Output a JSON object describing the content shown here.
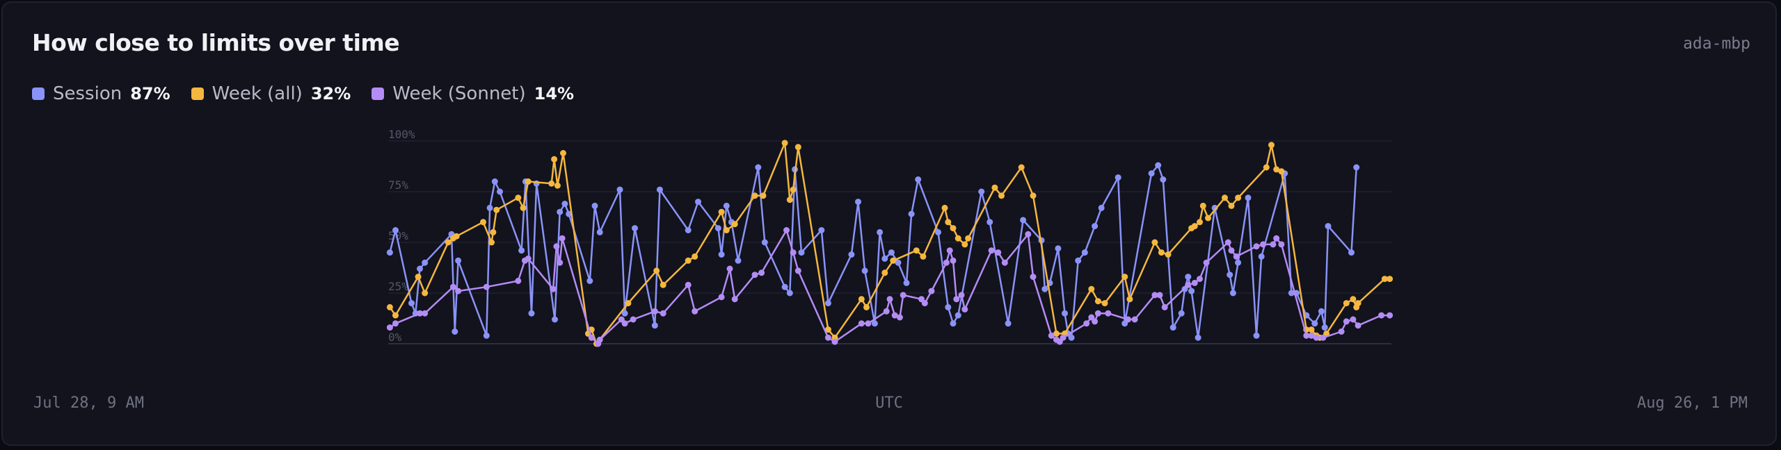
{
  "card": {
    "title": "How close to limits over time",
    "host": "ada-mbp"
  },
  "legend": [
    {
      "label": "Session",
      "value": "87%",
      "color": "#8a93f7"
    },
    {
      "label": "Week (all)",
      "value": "32%",
      "color": "#f5b73f"
    },
    {
      "label": "Week (Sonnet)",
      "value": "14%",
      "color": "#b48cf5"
    }
  ],
  "footer": {
    "start": "Jul 28, 9 AM",
    "middle": "UTC",
    "end": "Aug 26, 1 PM"
  },
  "chart_data": {
    "type": "line",
    "title": "How close to limits over time",
    "x_start": "Jul 28, 9 AM",
    "x_end": "Aug 26, 1 PM",
    "x_unit": "days",
    "xlim": [
      0,
      29.17
    ],
    "ylim": [
      0,
      100
    ],
    "yticks": [
      "0%",
      "25%",
      "50%",
      "75%",
      "100%"
    ],
    "grid": true,
    "legend_position": "top-left",
    "series": [
      {
        "name": "Session",
        "color": "#8a93f7",
        "points": [
          [
            0.05,
            45
          ],
          [
            0.22,
            56
          ],
          [
            0.7,
            20
          ],
          [
            0.82,
            15
          ],
          [
            0.95,
            37
          ],
          [
            1.1,
            40
          ],
          [
            1.9,
            54
          ],
          [
            2.0,
            6
          ],
          [
            2.1,
            41
          ],
          [
            2.95,
            4
          ],
          [
            3.05,
            67
          ],
          [
            3.2,
            80
          ],
          [
            3.35,
            75
          ],
          [
            4.0,
            46
          ],
          [
            4.12,
            80
          ],
          [
            4.3,
            15
          ],
          [
            4.45,
            79
          ],
          [
            5.0,
            12
          ],
          [
            5.15,
            65
          ],
          [
            5.3,
            69
          ],
          [
            5.42,
            64
          ],
          [
            6.05,
            31
          ],
          [
            6.2,
            68
          ],
          [
            6.35,
            55
          ],
          [
            6.95,
            76
          ],
          [
            7.1,
            15
          ],
          [
            7.4,
            57
          ],
          [
            8.0,
            9
          ],
          [
            8.15,
            76
          ],
          [
            9.0,
            56
          ],
          [
            9.3,
            70
          ],
          [
            9.9,
            57
          ],
          [
            10.0,
            44
          ],
          [
            10.15,
            68
          ],
          [
            10.3,
            60
          ],
          [
            10.5,
            41
          ],
          [
            11.1,
            87
          ],
          [
            11.3,
            50
          ],
          [
            11.9,
            28
          ],
          [
            12.05,
            25
          ],
          [
            12.2,
            86
          ],
          [
            12.4,
            45
          ],
          [
            13.0,
            56
          ],
          [
            13.2,
            20
          ],
          [
            13.9,
            44
          ],
          [
            14.1,
            70
          ],
          [
            14.3,
            36
          ],
          [
            14.6,
            10
          ],
          [
            14.75,
            55
          ],
          [
            14.9,
            42
          ],
          [
            15.1,
            45
          ],
          [
            15.3,
            40
          ],
          [
            15.55,
            30
          ],
          [
            15.7,
            64
          ],
          [
            15.9,
            81
          ],
          [
            16.5,
            55
          ],
          [
            16.8,
            18
          ],
          [
            16.95,
            10
          ],
          [
            17.1,
            14
          ],
          [
            17.8,
            75
          ],
          [
            18.05,
            60
          ],
          [
            18.6,
            10
          ],
          [
            19.05,
            61
          ],
          [
            19.6,
            51
          ],
          [
            19.7,
            27
          ],
          [
            19.85,
            30
          ],
          [
            20.1,
            47
          ],
          [
            20.3,
            15
          ],
          [
            20.4,
            5
          ],
          [
            20.5,
            3
          ],
          [
            20.7,
            41
          ],
          [
            20.9,
            45
          ],
          [
            21.2,
            58
          ],
          [
            21.4,
            67
          ],
          [
            21.9,
            82
          ],
          [
            22.1,
            10
          ],
          [
            22.9,
            84
          ],
          [
            23.1,
            88
          ],
          [
            23.25,
            81
          ],
          [
            23.55,
            8
          ],
          [
            23.8,
            15
          ],
          [
            23.9,
            27
          ],
          [
            24.0,
            33
          ],
          [
            24.1,
            26
          ],
          [
            24.3,
            3
          ],
          [
            24.8,
            67
          ],
          [
            25.25,
            34
          ],
          [
            25.35,
            25
          ],
          [
            25.5,
            40
          ],
          [
            25.8,
            72
          ],
          [
            26.05,
            4
          ],
          [
            26.2,
            43
          ],
          [
            26.9,
            84
          ],
          [
            27.1,
            25
          ],
          [
            27.25,
            25
          ],
          [
            27.55,
            14
          ],
          [
            27.8,
            10
          ],
          [
            28.0,
            16
          ],
          [
            28.1,
            8
          ],
          [
            28.2,
            58
          ],
          [
            28.9,
            45
          ],
          [
            29.05,
            87
          ]
        ]
      },
      {
        "name": "Week (all)",
        "color": "#f5b73f",
        "points": [
          [
            0.05,
            18
          ],
          [
            0.22,
            14
          ],
          [
            0.9,
            33
          ],
          [
            1.1,
            25
          ],
          [
            1.8,
            50
          ],
          [
            1.95,
            52
          ],
          [
            2.05,
            53
          ],
          [
            2.85,
            60
          ],
          [
            3.1,
            50
          ],
          [
            3.15,
            55
          ],
          [
            3.25,
            66
          ],
          [
            3.9,
            72
          ],
          [
            4.05,
            67
          ],
          [
            4.2,
            80
          ],
          [
            4.9,
            79
          ],
          [
            4.98,
            91
          ],
          [
            5.08,
            78
          ],
          [
            5.25,
            94
          ],
          [
            6.0,
            5
          ],
          [
            6.1,
            7
          ],
          [
            6.25,
            0
          ],
          [
            7.2,
            20
          ],
          [
            8.05,
            36
          ],
          [
            8.25,
            29
          ],
          [
            9.0,
            41
          ],
          [
            9.2,
            43
          ],
          [
            10.0,
            65
          ],
          [
            10.15,
            56
          ],
          [
            10.4,
            59
          ],
          [
            11.0,
            73
          ],
          [
            11.25,
            73
          ],
          [
            11.9,
            99
          ],
          [
            12.05,
            71
          ],
          [
            12.15,
            76
          ],
          [
            12.3,
            97
          ],
          [
            13.2,
            7
          ],
          [
            13.4,
            3
          ],
          [
            14.2,
            22
          ],
          [
            14.35,
            18
          ],
          [
            14.9,
            35
          ],
          [
            15.15,
            41
          ],
          [
            15.85,
            46
          ],
          [
            16.05,
            43
          ],
          [
            16.7,
            67
          ],
          [
            16.8,
            60
          ],
          [
            16.95,
            57
          ],
          [
            17.1,
            52
          ],
          [
            17.3,
            49
          ],
          [
            17.4,
            52
          ],
          [
            18.2,
            77
          ],
          [
            18.4,
            73
          ],
          [
            19.0,
            87
          ],
          [
            19.35,
            73
          ],
          [
            20.05,
            5
          ],
          [
            20.3,
            5
          ],
          [
            21.1,
            27
          ],
          [
            21.3,
            21
          ],
          [
            21.5,
            20
          ],
          [
            22.1,
            33
          ],
          [
            22.25,
            22
          ],
          [
            23.0,
            50
          ],
          [
            23.2,
            45
          ],
          [
            23.4,
            44
          ],
          [
            24.1,
            57
          ],
          [
            24.2,
            58
          ],
          [
            24.35,
            60
          ],
          [
            24.45,
            68
          ],
          [
            24.6,
            62
          ],
          [
            25.1,
            72
          ],
          [
            25.3,
            68
          ],
          [
            25.5,
            72
          ],
          [
            26.35,
            87
          ],
          [
            26.5,
            98
          ],
          [
            26.65,
            86
          ],
          [
            26.8,
            85
          ],
          [
            27.55,
            7
          ],
          [
            27.7,
            7
          ],
          [
            27.85,
            4
          ],
          [
            27.95,
            3
          ],
          [
            28.15,
            5
          ],
          [
            28.75,
            20
          ],
          [
            28.95,
            22
          ],
          [
            29.05,
            18
          ],
          [
            29.1,
            20
          ],
          [
            29.9,
            32
          ],
          [
            30.05,
            32
          ]
        ]
      },
      {
        "name": "Week (Sonnet)",
        "color": "#b48cf5",
        "points": [
          [
            0.05,
            8
          ],
          [
            0.22,
            10
          ],
          [
            0.95,
            15
          ],
          [
            1.1,
            15
          ],
          [
            1.95,
            28
          ],
          [
            2.1,
            26
          ],
          [
            2.95,
            28
          ],
          [
            3.9,
            31
          ],
          [
            4.1,
            41
          ],
          [
            4.2,
            42
          ],
          [
            4.95,
            27
          ],
          [
            5.05,
            48
          ],
          [
            5.15,
            40
          ],
          [
            5.22,
            52
          ],
          [
            6.1,
            3
          ],
          [
            6.3,
            0
          ],
          [
            6.35,
            2
          ],
          [
            7.0,
            12
          ],
          [
            7.1,
            10
          ],
          [
            7.35,
            12
          ],
          [
            8.0,
            16
          ],
          [
            8.25,
            15
          ],
          [
            9.0,
            29
          ],
          [
            9.2,
            16
          ],
          [
            10.0,
            23
          ],
          [
            10.25,
            37
          ],
          [
            10.4,
            22
          ],
          [
            11.0,
            34
          ],
          [
            11.2,
            35
          ],
          [
            11.95,
            56
          ],
          [
            12.15,
            45
          ],
          [
            12.3,
            36
          ],
          [
            13.2,
            3
          ],
          [
            13.4,
            1
          ],
          [
            14.2,
            10
          ],
          [
            14.4,
            10
          ],
          [
            14.95,
            16
          ],
          [
            15.05,
            22
          ],
          [
            15.2,
            14
          ],
          [
            15.35,
            13
          ],
          [
            15.45,
            24
          ],
          [
            16.0,
            22
          ],
          [
            16.1,
            20
          ],
          [
            16.3,
            26
          ],
          [
            16.75,
            40
          ],
          [
            16.85,
            46
          ],
          [
            16.95,
            41
          ],
          [
            17.05,
            22
          ],
          [
            17.2,
            24
          ],
          [
            17.3,
            17
          ],
          [
            18.1,
            46
          ],
          [
            18.3,
            45
          ],
          [
            18.5,
            40
          ],
          [
            19.2,
            54
          ],
          [
            19.35,
            33
          ],
          [
            19.9,
            4
          ],
          [
            20.05,
            2
          ],
          [
            20.15,
            1
          ],
          [
            20.25,
            3
          ],
          [
            20.95,
            10
          ],
          [
            21.1,
            13
          ],
          [
            21.2,
            11
          ],
          [
            21.3,
            15
          ],
          [
            21.6,
            15
          ],
          [
            22.2,
            12
          ],
          [
            22.4,
            12
          ],
          [
            23.0,
            24
          ],
          [
            23.15,
            24
          ],
          [
            23.3,
            18
          ],
          [
            24.0,
            29
          ],
          [
            24.2,
            30
          ],
          [
            24.35,
            32
          ],
          [
            24.55,
            40
          ],
          [
            25.2,
            50
          ],
          [
            25.3,
            46
          ],
          [
            25.45,
            43
          ],
          [
            26.05,
            48
          ],
          [
            26.25,
            49
          ],
          [
            26.55,
            49
          ],
          [
            26.65,
            52
          ],
          [
            26.8,
            49
          ],
          [
            27.55,
            4
          ],
          [
            27.7,
            4
          ],
          [
            27.85,
            3
          ],
          [
            28.05,
            3
          ],
          [
            28.6,
            6
          ],
          [
            28.75,
            11
          ],
          [
            28.95,
            12
          ],
          [
            29.1,
            9
          ],
          [
            29.8,
            14
          ],
          [
            30.05,
            14
          ]
        ]
      }
    ]
  }
}
